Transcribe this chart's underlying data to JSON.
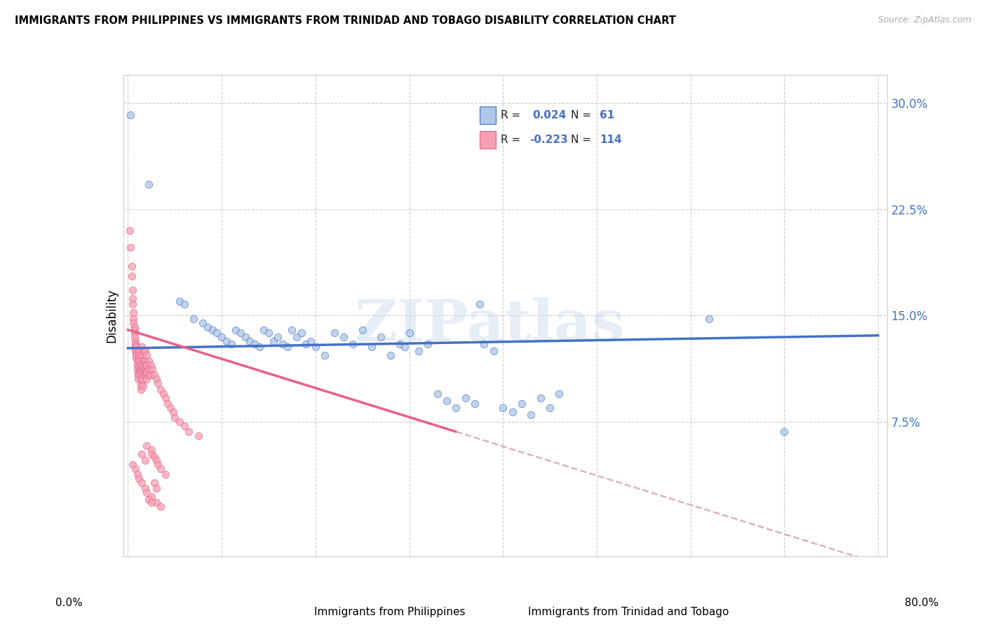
{
  "title": "IMMIGRANTS FROM PHILIPPINES VS IMMIGRANTS FROM TRINIDAD AND TOBAGO DISABILITY CORRELATION CHART",
  "source": "Source: ZipAtlas.com",
  "ylabel": "Disability",
  "color_philippines": "#aec6e8",
  "color_tt": "#f4a0b5",
  "trendline_philippines_color": "#4472c4",
  "trendline_tt_color": "#e8608a",
  "trendline_tt_dash_color": "#ddb0c0",
  "philippines_scatter": [
    [
      0.003,
      0.292
    ],
    [
      0.022,
      0.243
    ],
    [
      0.055,
      0.16
    ],
    [
      0.06,
      0.158
    ],
    [
      0.07,
      0.148
    ],
    [
      0.08,
      0.145
    ],
    [
      0.085,
      0.142
    ],
    [
      0.09,
      0.14
    ],
    [
      0.095,
      0.138
    ],
    [
      0.1,
      0.135
    ],
    [
      0.105,
      0.132
    ],
    [
      0.11,
      0.13
    ],
    [
      0.115,
      0.14
    ],
    [
      0.12,
      0.138
    ],
    [
      0.125,
      0.135
    ],
    [
      0.13,
      0.132
    ],
    [
      0.135,
      0.13
    ],
    [
      0.14,
      0.128
    ],
    [
      0.145,
      0.14
    ],
    [
      0.15,
      0.138
    ],
    [
      0.155,
      0.132
    ],
    [
      0.16,
      0.135
    ],
    [
      0.165,
      0.13
    ],
    [
      0.17,
      0.128
    ],
    [
      0.175,
      0.14
    ],
    [
      0.18,
      0.135
    ],
    [
      0.185,
      0.138
    ],
    [
      0.19,
      0.13
    ],
    [
      0.195,
      0.132
    ],
    [
      0.2,
      0.128
    ],
    [
      0.21,
      0.122
    ],
    [
      0.22,
      0.138
    ],
    [
      0.23,
      0.135
    ],
    [
      0.24,
      0.13
    ],
    [
      0.25,
      0.14
    ],
    [
      0.26,
      0.128
    ],
    [
      0.27,
      0.135
    ],
    [
      0.28,
      0.122
    ],
    [
      0.29,
      0.13
    ],
    [
      0.295,
      0.128
    ],
    [
      0.3,
      0.138
    ],
    [
      0.31,
      0.125
    ],
    [
      0.32,
      0.13
    ],
    [
      0.33,
      0.095
    ],
    [
      0.34,
      0.09
    ],
    [
      0.35,
      0.085
    ],
    [
      0.36,
      0.092
    ],
    [
      0.37,
      0.088
    ],
    [
      0.375,
      0.158
    ],
    [
      0.38,
      0.13
    ],
    [
      0.39,
      0.125
    ],
    [
      0.4,
      0.085
    ],
    [
      0.41,
      0.082
    ],
    [
      0.42,
      0.088
    ],
    [
      0.43,
      0.08
    ],
    [
      0.44,
      0.092
    ],
    [
      0.45,
      0.085
    ],
    [
      0.46,
      0.095
    ],
    [
      0.62,
      0.148
    ],
    [
      0.7,
      0.068
    ]
  ],
  "tt_scatter": [
    [
      0.002,
      0.21
    ],
    [
      0.003,
      0.198
    ],
    [
      0.004,
      0.185
    ],
    [
      0.004,
      0.178
    ],
    [
      0.005,
      0.168
    ],
    [
      0.005,
      0.162
    ],
    [
      0.005,
      0.158
    ],
    [
      0.006,
      0.152
    ],
    [
      0.006,
      0.148
    ],
    [
      0.006,
      0.145
    ],
    [
      0.007,
      0.142
    ],
    [
      0.007,
      0.14
    ],
    [
      0.007,
      0.138
    ],
    [
      0.007,
      0.135
    ],
    [
      0.008,
      0.132
    ],
    [
      0.008,
      0.13
    ],
    [
      0.008,
      0.128
    ],
    [
      0.008,
      0.125
    ],
    [
      0.009,
      0.128
    ],
    [
      0.009,
      0.125
    ],
    [
      0.009,
      0.122
    ],
    [
      0.009,
      0.12
    ],
    [
      0.01,
      0.118
    ],
    [
      0.01,
      0.115
    ],
    [
      0.01,
      0.115
    ],
    [
      0.01,
      0.112
    ],
    [
      0.011,
      0.11
    ],
    [
      0.011,
      0.108
    ],
    [
      0.011,
      0.108
    ],
    [
      0.011,
      0.105
    ],
    [
      0.012,
      0.125
    ],
    [
      0.012,
      0.122
    ],
    [
      0.012,
      0.12
    ],
    [
      0.012,
      0.118
    ],
    [
      0.013,
      0.115
    ],
    [
      0.013,
      0.112
    ],
    [
      0.013,
      0.11
    ],
    [
      0.013,
      0.108
    ],
    [
      0.014,
      0.105
    ],
    [
      0.014,
      0.102
    ],
    [
      0.014,
      0.1
    ],
    [
      0.014,
      0.098
    ],
    [
      0.015,
      0.128
    ],
    [
      0.015,
      0.122
    ],
    [
      0.015,
      0.118
    ],
    [
      0.015,
      0.115
    ],
    [
      0.016,
      0.112
    ],
    [
      0.016,
      0.108
    ],
    [
      0.016,
      0.105
    ],
    [
      0.016,
      0.1
    ],
    [
      0.017,
      0.125
    ],
    [
      0.017,
      0.118
    ],
    [
      0.017,
      0.115
    ],
    [
      0.017,
      0.11
    ],
    [
      0.018,
      0.125
    ],
    [
      0.018,
      0.118
    ],
    [
      0.018,
      0.112
    ],
    [
      0.018,
      0.108
    ],
    [
      0.019,
      0.115
    ],
    [
      0.019,
      0.11
    ],
    [
      0.02,
      0.122
    ],
    [
      0.02,
      0.115
    ],
    [
      0.02,
      0.11
    ],
    [
      0.02,
      0.105
    ],
    [
      0.022,
      0.118
    ],
    [
      0.022,
      0.112
    ],
    [
      0.022,
      0.108
    ],
    [
      0.024,
      0.115
    ],
    [
      0.024,
      0.108
    ],
    [
      0.026,
      0.112
    ],
    [
      0.028,
      0.108
    ],
    [
      0.03,
      0.105
    ],
    [
      0.032,
      0.102
    ],
    [
      0.035,
      0.098
    ],
    [
      0.038,
      0.095
    ],
    [
      0.04,
      0.092
    ],
    [
      0.042,
      0.088
    ],
    [
      0.045,
      0.085
    ],
    [
      0.048,
      0.082
    ],
    [
      0.05,
      0.078
    ],
    [
      0.055,
      0.075
    ],
    [
      0.06,
      0.072
    ],
    [
      0.065,
      0.068
    ],
    [
      0.075,
      0.065
    ],
    [
      0.005,
      0.045
    ],
    [
      0.008,
      0.042
    ],
    [
      0.01,
      0.038
    ],
    [
      0.012,
      0.035
    ],
    [
      0.015,
      0.032
    ],
    [
      0.018,
      0.028
    ],
    [
      0.02,
      0.025
    ],
    [
      0.025,
      0.022
    ],
    [
      0.03,
      0.018
    ],
    [
      0.035,
      0.015
    ],
    [
      0.015,
      0.052
    ],
    [
      0.018,
      0.048
    ],
    [
      0.02,
      0.058
    ],
    [
      0.025,
      0.055
    ],
    [
      0.025,
      0.052
    ],
    [
      0.028,
      0.05
    ],
    [
      0.03,
      0.048
    ],
    [
      0.032,
      0.045
    ],
    [
      0.035,
      0.042
    ],
    [
      0.04,
      0.038
    ],
    [
      0.028,
      0.032
    ],
    [
      0.03,
      0.028
    ],
    [
      0.022,
      0.02
    ],
    [
      0.025,
      0.018
    ]
  ],
  "phil_trendline": [
    [
      0.0,
      0.127
    ],
    [
      0.8,
      0.136
    ]
  ],
  "tt_trendline_solid": [
    [
      0.0,
      0.14
    ],
    [
      0.35,
      0.068
    ]
  ],
  "tt_trendline_dash": [
    [
      0.35,
      0.068
    ],
    [
      0.8,
      -0.025
    ]
  ],
  "xlim": [
    0.0,
    0.8
  ],
  "ylim": [
    -0.02,
    0.32
  ],
  "ytick_vals": [
    0.075,
    0.15,
    0.225,
    0.3
  ],
  "ytick_labels": [
    "7.5%",
    "15.0%",
    "22.5%",
    "30.0%"
  ],
  "xtick_vals": [
    0.0,
    0.1,
    0.2,
    0.3,
    0.4,
    0.5,
    0.6,
    0.7,
    0.8
  ],
  "watermark": "ZIPatlas"
}
